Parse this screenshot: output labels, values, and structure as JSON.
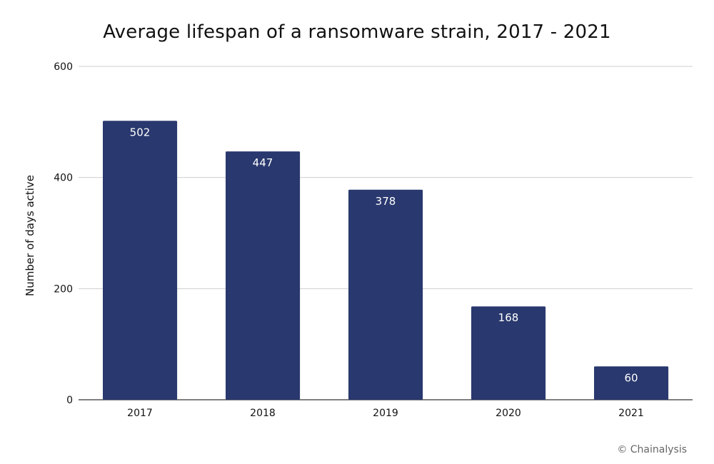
{
  "chart_data": {
    "type": "bar",
    "title": "Average lifespan of a ransomware strain, 2017 - 2021",
    "xlabel": "",
    "ylabel": "Number of days active",
    "categories": [
      "2017",
      "2018",
      "2019",
      "2020",
      "2021"
    ],
    "values": [
      502,
      447,
      378,
      168,
      60
    ],
    "data_labels": [
      "502",
      "447",
      "378",
      "168",
      "60"
    ],
    "ylim": [
      0,
      600
    ],
    "yticks": [
      0,
      200,
      400,
      600
    ],
    "grid": true,
    "legend": "none",
    "bar_color": "#29386E"
  },
  "source_credit": "© Chainalysis"
}
